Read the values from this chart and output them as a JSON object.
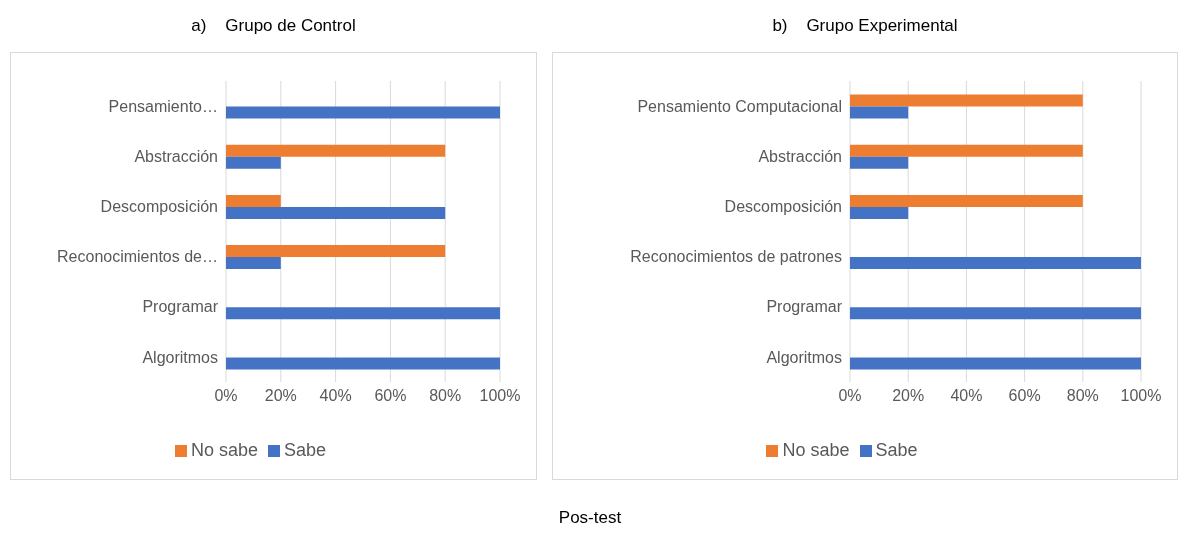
{
  "chart_data": [
    {
      "type": "bar",
      "orientation": "horizontal",
      "title": "a)    Grupo de Control",
      "categories": [
        "Pensamiento…",
        "Abstracción",
        "Descomposición",
        "Reconocimientos de…",
        "Programar",
        "Algoritmos"
      ],
      "series": [
        {
          "name": "No sabe",
          "color": "#ed7d31",
          "values": [
            0,
            80,
            20,
            80,
            0,
            0
          ]
        },
        {
          "name": "Sabe",
          "color": "#4472c4",
          "values": [
            100,
            20,
            80,
            20,
            100,
            100
          ]
        }
      ],
      "xlim": [
        0,
        100
      ],
      "xticks": [
        {
          "value": 0,
          "label": "0%"
        },
        {
          "value": 20,
          "label": "20%"
        },
        {
          "value": 40,
          "label": "40%"
        },
        {
          "value": 60,
          "label": "60%"
        },
        {
          "value": 80,
          "label": "80%"
        },
        {
          "value": 100,
          "label": "100%"
        }
      ],
      "grid": "x",
      "legend": "bottom"
    },
    {
      "type": "bar",
      "orientation": "horizontal",
      "title": "b)    Grupo Experimental",
      "categories": [
        "Pensamiento Computacional",
        "Abstracción",
        "Descomposición",
        "Reconocimientos de patrones",
        "Programar",
        "Algoritmos"
      ],
      "series": [
        {
          "name": "No sabe",
          "color": "#ed7d31",
          "values": [
            80,
            80,
            80,
            0,
            0,
            0
          ]
        },
        {
          "name": "Sabe",
          "color": "#4472c4",
          "values": [
            20,
            20,
            20,
            100,
            100,
            100
          ]
        }
      ],
      "xlim": [
        0,
        100
      ],
      "xticks": [
        {
          "value": 0,
          "label": "0%"
        },
        {
          "value": 20,
          "label": "20%"
        },
        {
          "value": 40,
          "label": "40%"
        },
        {
          "value": 60,
          "label": "60%"
        },
        {
          "value": 80,
          "label": "80%"
        },
        {
          "value": 100,
          "label": "100%"
        }
      ],
      "grid": "x",
      "legend": "bottom",
      "annotations": [
        "Pos-test"
      ]
    }
  ]
}
